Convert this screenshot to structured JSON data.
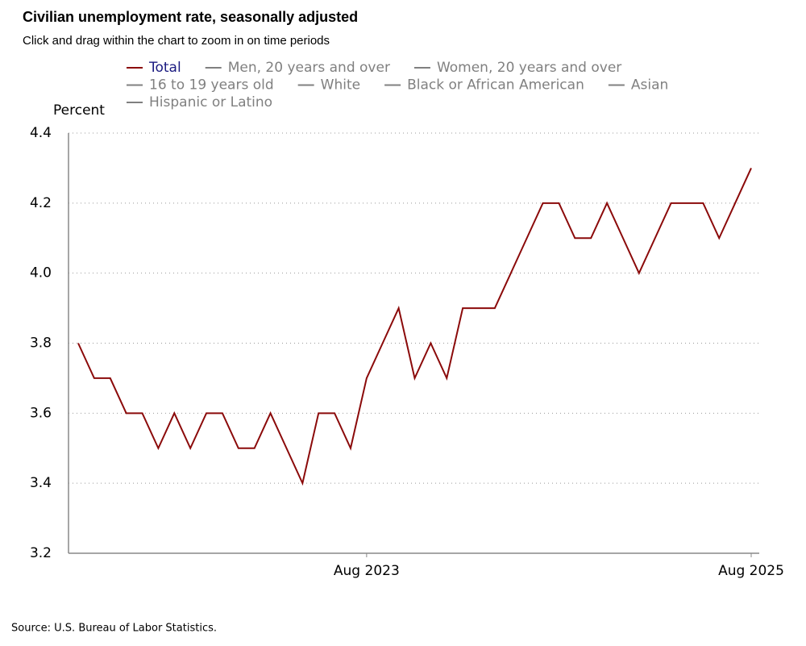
{
  "chart_data": {
    "type": "line",
    "title": "Civilian unemployment rate, seasonally adjusted",
    "subtitle": "Click and drag within the chart to zoom in on time periods",
    "y_label": "Percent",
    "source": "Source: U.S. Bureau of Labor Statistics.",
    "x": [
      "Feb 2022",
      "Mar 2022",
      "Apr 2022",
      "May 2022",
      "Jun 2022",
      "Jul 2022",
      "Aug 2022",
      "Sep 2022",
      "Oct 2022",
      "Nov 2022",
      "Dec 2022",
      "Jan 2023",
      "Feb 2023",
      "Mar 2023",
      "Apr 2023",
      "May 2023",
      "Jun 2023",
      "Jul 2023",
      "Aug 2023",
      "Sep 2023",
      "Oct 2023",
      "Nov 2023",
      "Dec 2023",
      "Jan 2024",
      "Feb 2024",
      "Mar 2024",
      "Apr 2024",
      "May 2024",
      "Jun 2024",
      "Jul 2024",
      "Aug 2024",
      "Sep 2024",
      "Oct 2024",
      "Nov 2024",
      "Dec 2024",
      "Jan 2025",
      "Feb 2025",
      "Mar 2025",
      "Apr 2025",
      "May 2025",
      "Jun 2025",
      "Jul 2025",
      "Aug 2025"
    ],
    "xticks": [
      "Aug 2023",
      "Aug 2025"
    ],
    "ylim": [
      3.2,
      4.4
    ],
    "yticks": [
      3.2,
      3.4,
      3.6,
      3.8,
      {
        "value": 4,
        "label": "4.0"
      },
      4.2,
      4.4
    ],
    "grid": true,
    "series": [
      {
        "name": "Total",
        "color": "#8b0a0a",
        "values": [
          3.8,
          3.7,
          3.7,
          3.6,
          3.6,
          3.5,
          3.6,
          3.5,
          3.6,
          3.6,
          3.5,
          3.5,
          3.6,
          3.5,
          3.4,
          3.6,
          3.6,
          3.5,
          3.7,
          3.8,
          3.9,
          3.7,
          3.8,
          3.7,
          3.9,
          3.9,
          3.9,
          4.0,
          4.1,
          4.2,
          4.2,
          4.1,
          4.1,
          4.2,
          4.1,
          4.0,
          4.1,
          4.2,
          4.2,
          4.2,
          4.1,
          4.2,
          4.3
        ]
      },
      {
        "name": "Men, 20 years and over",
        "color": "#808080"
      },
      {
        "name": "Women, 20 years and over",
        "color": "#808080"
      },
      {
        "name": "16 to 19 years old",
        "color": "#808080"
      },
      {
        "name": "White",
        "color": "#808080"
      },
      {
        "name": "Black or African American",
        "color": "#808080"
      },
      {
        "name": "Asian",
        "color": "#808080"
      },
      {
        "name": "Hispanic or Latino",
        "color": "#808080"
      }
    ]
  }
}
